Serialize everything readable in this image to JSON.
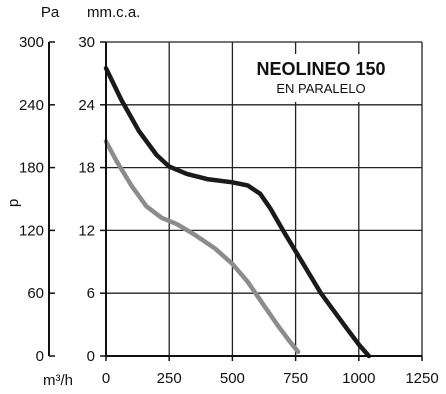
{
  "chart_data": {
    "type": "line",
    "title": "NEOLINEO 150",
    "subtitle": "EN PARALELO",
    "xlabel": "m³/h",
    "ylabel": "p",
    "ylabel_left_unit": "Pa",
    "ylabel_right_unit": "mm.c.a.",
    "xlim": [
      0,
      1250
    ],
    "ylim": [
      0,
      30
    ],
    "ylim_pa": [
      0,
      300
    ],
    "grid": true,
    "x_ticks": [
      "0",
      "250",
      "500",
      "750",
      "1000",
      "1250"
    ],
    "y_ticks_mmca": [
      "0",
      "6",
      "12",
      "18",
      "24",
      "30"
    ],
    "y_ticks_pa": [
      "0",
      "60",
      "120",
      "180",
      "240",
      "300"
    ],
    "series": [
      {
        "color": "#1a1a1a",
        "points": [
          [
            0,
            27.5
          ],
          [
            60,
            24.5
          ],
          [
            130,
            21.5
          ],
          [
            200,
            19.2
          ],
          [
            250,
            18.1
          ],
          [
            320,
            17.4
          ],
          [
            400,
            16.9
          ],
          [
            500,
            16.6
          ],
          [
            560,
            16.3
          ],
          [
            610,
            15.5
          ],
          [
            650,
            14.1
          ],
          [
            700,
            12.0
          ],
          [
            770,
            9.2
          ],
          [
            850,
            6.0
          ],
          [
            950,
            2.7
          ],
          [
            1000,
            1.1
          ],
          [
            1040,
            0
          ]
        ]
      },
      {
        "color": "#8c8c8c",
        "points": [
          [
            0,
            20.5
          ],
          [
            40,
            18.7
          ],
          [
            100,
            16.3
          ],
          [
            160,
            14.3
          ],
          [
            220,
            13.2
          ],
          [
            280,
            12.6
          ],
          [
            350,
            11.6
          ],
          [
            430,
            10.3
          ],
          [
            500,
            8.8
          ],
          [
            560,
            7.1
          ],
          [
            620,
            5.0
          ],
          [
            680,
            2.9
          ],
          [
            730,
            1.3
          ],
          [
            760,
            0.4
          ]
        ]
      }
    ]
  }
}
